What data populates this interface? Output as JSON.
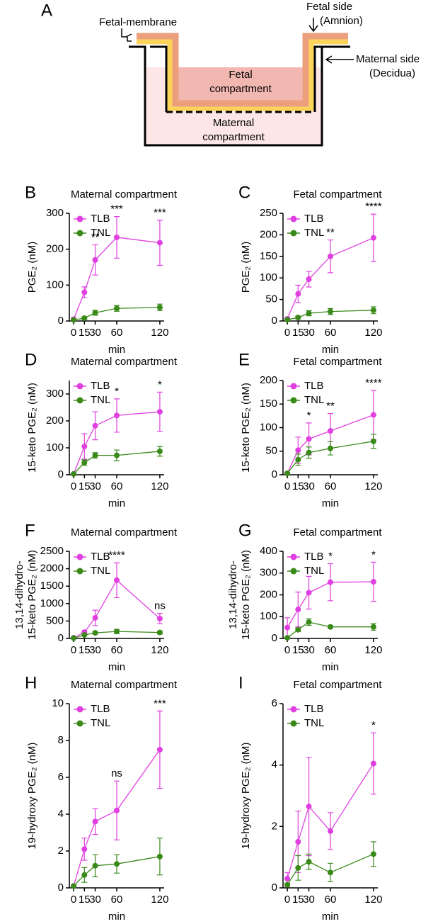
{
  "diagram": {
    "panel": "A",
    "labels": [
      "Fetal-membrane",
      "Fetal side",
      "(Amnion)",
      "Maternal side",
      "(Decidua)",
      "Fetal",
      "compartment",
      "Maternal",
      "compartment"
    ]
  },
  "chart_data": [
    {
      "type": "line",
      "panel": "B",
      "title": "Maternal compartment",
      "ylabel": [
        "PGE₂ (nM)"
      ],
      "xlabel": "min",
      "x": [
        0,
        15,
        30,
        60,
        120
      ],
      "xticks": [
        0,
        15,
        30,
        60,
        120
      ],
      "xlim": [
        -6,
        126
      ],
      "ylim": [
        0,
        300
      ],
      "yticks": [
        0,
        100,
        200,
        300
      ],
      "series": [
        {
          "name": "TLB",
          "color": "#e040e0",
          "values": [
            5,
            80,
            170,
            233,
            218
          ],
          "errors": [
            3,
            15,
            42,
            58,
            63
          ]
        },
        {
          "name": "TNL",
          "color": "#3a8a1a",
          "values": [
            3,
            8,
            23,
            35,
            38
          ],
          "errors": [
            2,
            4,
            7,
            8,
            9
          ]
        }
      ],
      "annotations": [
        {
          "x": 30,
          "text": "**"
        },
        {
          "x": 60,
          "text": "***"
        },
        {
          "x": 120,
          "text": "***"
        }
      ]
    },
    {
      "type": "line",
      "panel": "C",
      "title": "Fetal compartment",
      "ylabel": [
        "PGE₂ (nM)"
      ],
      "xlabel": "min",
      "x": [
        0,
        15,
        30,
        60,
        120
      ],
      "xticks": [
        0,
        15,
        30,
        60,
        120
      ],
      "xlim": [
        -6,
        126
      ],
      "ylim": [
        0,
        250
      ],
      "yticks": [
        0,
        50,
        100,
        150,
        200,
        250
      ],
      "series": [
        {
          "name": "TLB",
          "color": "#e040e0",
          "values": [
            5,
            63,
            97,
            150,
            193
          ],
          "errors": [
            3,
            20,
            18,
            38,
            55
          ]
        },
        {
          "name": "TNL",
          "color": "#3a8a1a",
          "values": [
            3,
            8,
            18,
            22,
            25
          ],
          "errors": [
            2,
            3,
            6,
            7,
            8
          ]
        }
      ],
      "annotations": [
        {
          "x": 60,
          "text": "**"
        },
        {
          "x": 120,
          "text": "****"
        }
      ]
    },
    {
      "type": "line",
      "panel": "D",
      "title": "Maternal compartment",
      "ylabel": [
        "15-keto PGE₂ (nM)"
      ],
      "xlabel": "min",
      "x": [
        0,
        15,
        30,
        60,
        120
      ],
      "xticks": [
        0,
        15,
        30,
        60,
        120
      ],
      "xlim": [
        -6,
        126
      ],
      "ylim": [
        0,
        350
      ],
      "yticks": [
        0,
        100,
        200,
        300
      ],
      "series": [
        {
          "name": "TLB",
          "color": "#e040e0",
          "values": [
            3,
            105,
            182,
            220,
            234
          ],
          "errors": [
            2,
            47,
            52,
            62,
            73
          ]
        },
        {
          "name": "TNL",
          "color": "#3a8a1a",
          "values": [
            3,
            45,
            72,
            72,
            87
          ],
          "errors": [
            2,
            10,
            10,
            20,
            18
          ]
        }
      ],
      "annotations": [
        {
          "x": 60,
          "text": "*"
        },
        {
          "x": 120,
          "text": "*"
        }
      ]
    },
    {
      "type": "line",
      "panel": "E",
      "title": "Fetal compartment",
      "ylabel": [
        "15-keto PGE₂ (nM)"
      ],
      "xlabel": "min",
      "x": [
        0,
        15,
        30,
        60,
        120
      ],
      "xticks": [
        0,
        15,
        30,
        60,
        120
      ],
      "xlim": [
        -6,
        126
      ],
      "ylim": [
        0,
        200
      ],
      "yticks": [
        0,
        50,
        100,
        150,
        200
      ],
      "series": [
        {
          "name": "TLB",
          "color": "#e040e0",
          "values": [
            3,
            52,
            76,
            93,
            127
          ],
          "errors": [
            2,
            28,
            34,
            37,
            52
          ]
        },
        {
          "name": "TNL",
          "color": "#3a8a1a",
          "values": [
            3,
            32,
            47,
            56,
            71
          ],
          "errors": [
            2,
            12,
            12,
            14,
            15
          ]
        }
      ],
      "annotations": [
        {
          "x": 30,
          "text": "*"
        },
        {
          "x": 60,
          "text": "**"
        },
        {
          "x": 120,
          "text": "****"
        }
      ]
    },
    {
      "type": "line",
      "panel": "F",
      "title": "Maternal compartment",
      "ylabel": [
        "13,14-dihydro-",
        "15-keto PGE₂ (nM)"
      ],
      "xlabel": "min",
      "x": [
        0,
        15,
        30,
        60,
        120
      ],
      "xticks": [
        0,
        15,
        30,
        60,
        120
      ],
      "xlim": [
        -6,
        126
      ],
      "ylim": [
        0,
        2500
      ],
      "yticks": [
        0,
        500,
        1000,
        1500,
        2000,
        2500
      ],
      "series": [
        {
          "name": "TLB",
          "color": "#e040e0",
          "values": [
            20,
            180,
            590,
            1670,
            570
          ],
          "errors": [
            10,
            50,
            220,
            500,
            150
          ]
        },
        {
          "name": "TNL",
          "color": "#3a8a1a",
          "values": [
            10,
            100,
            160,
            200,
            170
          ],
          "errors": [
            5,
            20,
            30,
            60,
            40
          ]
        }
      ],
      "annotations": [
        {
          "x": 60,
          "text": "****"
        },
        {
          "x": 120,
          "text": "ns"
        }
      ]
    },
    {
      "type": "line",
      "panel": "G",
      "title": "Fetal compartment",
      "ylabel": [
        "13,14-dihydro-",
        "15-keto PGE₂ (nM)"
      ],
      "xlabel": "min",
      "x": [
        0,
        15,
        30,
        60,
        120
      ],
      "xticks": [
        0,
        15,
        30,
        60,
        120
      ],
      "xlim": [
        -6,
        126
      ],
      "ylim": [
        0,
        400
      ],
      "yticks": [
        0,
        100,
        200,
        300,
        400
      ],
      "series": [
        {
          "name": "TLB",
          "color": "#e040e0",
          "values": [
            50,
            133,
            210,
            258,
            260
          ],
          "errors": [
            45,
            80,
            75,
            85,
            90
          ]
        },
        {
          "name": "TNL",
          "color": "#3a8a1a",
          "values": [
            3,
            40,
            75,
            53,
            53
          ],
          "errors": [
            2,
            8,
            15,
            6,
            15
          ]
        }
      ],
      "annotations": [
        {
          "x": 60,
          "text": "*"
        },
        {
          "x": 120,
          "text": "*"
        }
      ]
    },
    {
      "type": "line",
      "panel": "H",
      "title": "Maternal compartment",
      "ylabel": [
        "19-hydroxy PGE₂ (nM)"
      ],
      "xlabel": "min",
      "x": [
        0,
        15,
        30,
        60,
        120
      ],
      "xticks": [
        0,
        15,
        30,
        60,
        120
      ],
      "xlim": [
        -6,
        126
      ],
      "ylim": [
        0,
        10
      ],
      "yticks": [
        0,
        2,
        4,
        6,
        8,
        10
      ],
      "series": [
        {
          "name": "TLB",
          "color": "#e040e0",
          "values": [
            0.1,
            2.1,
            3.6,
            4.2,
            7.5
          ],
          "errors": [
            0.05,
            0.6,
            0.7,
            1.6,
            2.1
          ]
        },
        {
          "name": "TNL",
          "color": "#3a8a1a",
          "values": [
            0.1,
            0.7,
            1.2,
            1.3,
            1.7
          ],
          "errors": [
            0.05,
            0.4,
            0.6,
            0.5,
            1.0
          ]
        }
      ],
      "annotations": [
        {
          "x": 60,
          "text": "ns"
        },
        {
          "x": 120,
          "text": "***"
        }
      ]
    },
    {
      "type": "line",
      "panel": "I",
      "title": "Fetal compartment",
      "ylabel": [
        "19-hydroxy PGE₂ (nM)"
      ],
      "xlabel": "min",
      "x": [
        0,
        15,
        30,
        60,
        120
      ],
      "xticks": [
        0,
        15,
        30,
        60,
        120
      ],
      "xlim": [
        -6,
        126
      ],
      "ylim": [
        0,
        6
      ],
      "yticks": [
        0,
        2,
        4,
        6
      ],
      "series": [
        {
          "name": "TLB",
          "color": "#e040e0",
          "values": [
            0.3,
            1.5,
            2.65,
            1.85,
            4.05
          ],
          "errors": [
            0.2,
            1.0,
            1.6,
            0.6,
            1.0
          ]
        },
        {
          "name": "TNL",
          "color": "#3a8a1a",
          "values": [
            0.1,
            0.65,
            0.85,
            0.5,
            1.1
          ],
          "errors": [
            0.05,
            0.4,
            0.25,
            0.3,
            0.4
          ]
        }
      ],
      "annotations": [
        {
          "x": 120,
          "text": "*"
        }
      ]
    }
  ]
}
